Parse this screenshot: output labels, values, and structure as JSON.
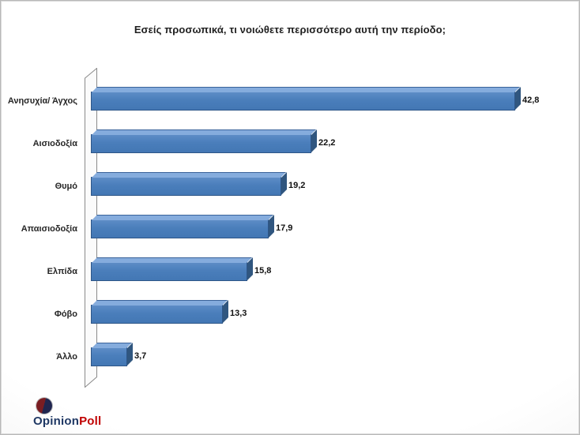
{
  "chart_data": {
    "type": "bar",
    "orientation": "horizontal",
    "title": "Εσείς προσωπικά, τι νοιώθετε περισσότερο αυτή την περίοδο;",
    "categories": [
      "Ανησυχία/ Άγχος",
      "Αισιοδοξία",
      "Θυμό",
      "Απαισιοδοξία",
      "Ελπίδα",
      "Φόβο",
      "Άλλο"
    ],
    "values": [
      42.8,
      22.2,
      19.2,
      17.9,
      15.8,
      13.3,
      3.7
    ],
    "value_labels": [
      "42,8",
      "22,2",
      "19,2",
      "17,9",
      "15,8",
      "13,3",
      "3,7"
    ],
    "xlim": [
      0,
      45
    ],
    "grid": false,
    "legend": "none",
    "style": "3d-horizontal-bars",
    "bar_color": "#4a7ebb",
    "bar_top_color": "#85acdd",
    "bar_side_color": "#30567f"
  },
  "branding": {
    "logo_text_primary": "Opinion",
    "logo_text_secondary": "Poll",
    "primary_color": "#1f3864",
    "secondary_color": "#c00000"
  }
}
